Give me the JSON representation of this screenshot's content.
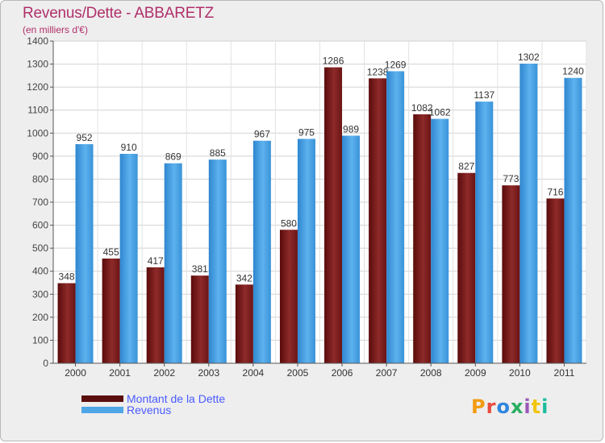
{
  "title": "Revenus/Dette - ABBARETZ",
  "subtitle": "(en milliers d'€)",
  "logo": "Proxiti",
  "colors": {
    "dette": "#7a1a1a",
    "revenus": "#4ea6e6",
    "title": "#b0306a",
    "legend_text": "#4a5bff"
  },
  "chart_data": {
    "type": "bar",
    "categories": [
      "2000",
      "2001",
      "2002",
      "2003",
      "2004",
      "2005",
      "2006",
      "2007",
      "2008",
      "2009",
      "2010",
      "2011"
    ],
    "series": [
      {
        "name": "Montant de la Dette",
        "values": [
          348,
          455,
          417,
          381,
          342,
          580,
          1286,
          1238,
          1082,
          827,
          773,
          716
        ]
      },
      {
        "name": "Revenus",
        "values": [
          952,
          910,
          869,
          885,
          967,
          975,
          989,
          1269,
          1062,
          1137,
          1302,
          1240
        ]
      }
    ],
    "ylim": [
      0,
      1400
    ],
    "yticks": [
      0,
      100,
      200,
      300,
      400,
      500,
      600,
      700,
      800,
      900,
      1000,
      1100,
      1200,
      1300,
      1400
    ],
    "grid": true,
    "legend_position": "bottom-left"
  }
}
